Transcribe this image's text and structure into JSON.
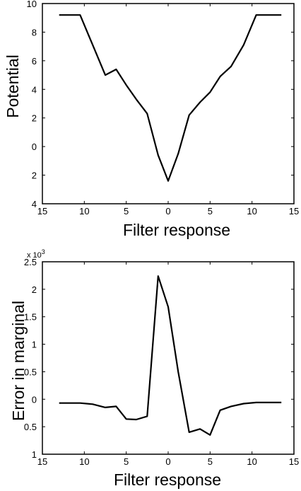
{
  "chart_data": [
    {
      "type": "line",
      "xlabel": "Filter response",
      "ylabel": "Potential",
      "xlim": [
        -15,
        15
      ],
      "ylim": [
        -4,
        10
      ],
      "x_tick_values": [
        -15,
        -10,
        -5,
        0,
        5,
        10,
        15
      ],
      "x_tick_labels": [
        "15",
        "10",
        "5",
        "0",
        "5",
        "10",
        "15"
      ],
      "y_tick_values": [
        10,
        8,
        6,
        4,
        2,
        0,
        -2,
        -4
      ],
      "y_tick_labels": [
        "10",
        "8",
        "6",
        "4",
        "2",
        "0",
        "2",
        "4"
      ],
      "series": [
        {
          "x": [
            -13,
            -10.5,
            -9,
            -7.5,
            -6.2,
            -5,
            -3.8,
            -2.5,
            -1.2,
            0,
            1.2,
            2.5,
            3.8,
            5,
            6.2,
            7.5,
            9,
            10.5,
            13.5
          ],
          "y": [
            9.2,
            9.2,
            7.1,
            5.0,
            5.4,
            4.3,
            3.3,
            2.3,
            -0.6,
            -2.4,
            -0.5,
            2.2,
            3.1,
            3.8,
            4.9,
            5.6,
            7.1,
            9.2,
            9.2
          ]
        }
      ]
    },
    {
      "type": "line",
      "xlabel": "Filter response",
      "ylabel": "Error in marginal",
      "multiplier": "x 10",
      "multiplier_exp": "3",
      "xlim": [
        -15,
        15
      ],
      "ylim": [
        -1,
        2.5
      ],
      "x_tick_values": [
        -15,
        -10,
        -5,
        0,
        5,
        10,
        15
      ],
      "x_tick_labels": [
        "15",
        "10",
        "5",
        "0",
        "5",
        "10",
        "15"
      ],
      "y_tick_values": [
        2.5,
        2,
        1.5,
        1,
        0.5,
        0,
        -0.5,
        -1
      ],
      "y_tick_labels": [
        "2.5",
        "2",
        "1.5",
        "1",
        "0.5",
        "0",
        "0.5",
        "1"
      ],
      "series": [
        {
          "x": [
            -13,
            -10.5,
            -9,
            -7.5,
            -6.2,
            -5,
            -3.8,
            -2.5,
            -1.2,
            0,
            1.2,
            2.5,
            3.8,
            5,
            6.2,
            7.5,
            9,
            10.5,
            13.5
          ],
          "y": [
            -0.07,
            -0.07,
            -0.09,
            -0.15,
            -0.13,
            -0.36,
            -0.37,
            -0.31,
            2.24,
            1.68,
            0.5,
            -0.6,
            -0.54,
            -0.65,
            -0.2,
            -0.13,
            -0.08,
            -0.06,
            -0.06
          ]
        }
      ]
    }
  ]
}
